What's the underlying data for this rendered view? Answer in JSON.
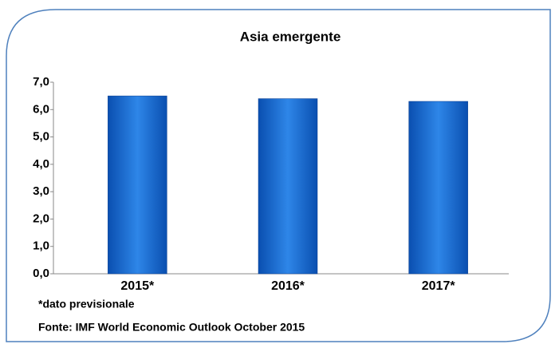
{
  "chart_data": {
    "type": "bar",
    "title": "Asia emergente",
    "categories": [
      "2015*",
      "2016*",
      "2017*"
    ],
    "values": [
      6.5,
      6.4,
      6.3
    ],
    "color": "#1f6fd0",
    "ylim": [
      0,
      7
    ],
    "yticks": [
      {
        "value": 0,
        "label": "0,0"
      },
      {
        "value": 1,
        "label": "1,0"
      },
      {
        "value": 2,
        "label": "2,0"
      },
      {
        "value": 3,
        "label": "3,0"
      },
      {
        "value": 4,
        "label": "4,0"
      },
      {
        "value": 5,
        "label": "5,0"
      },
      {
        "value": 6,
        "label": "6,0"
      },
      {
        "value": 7,
        "label": "7,0"
      }
    ],
    "annotations": [
      "*dato previsionale",
      "Fonte: IMF World Economic Outlook October 2015"
    ]
  }
}
